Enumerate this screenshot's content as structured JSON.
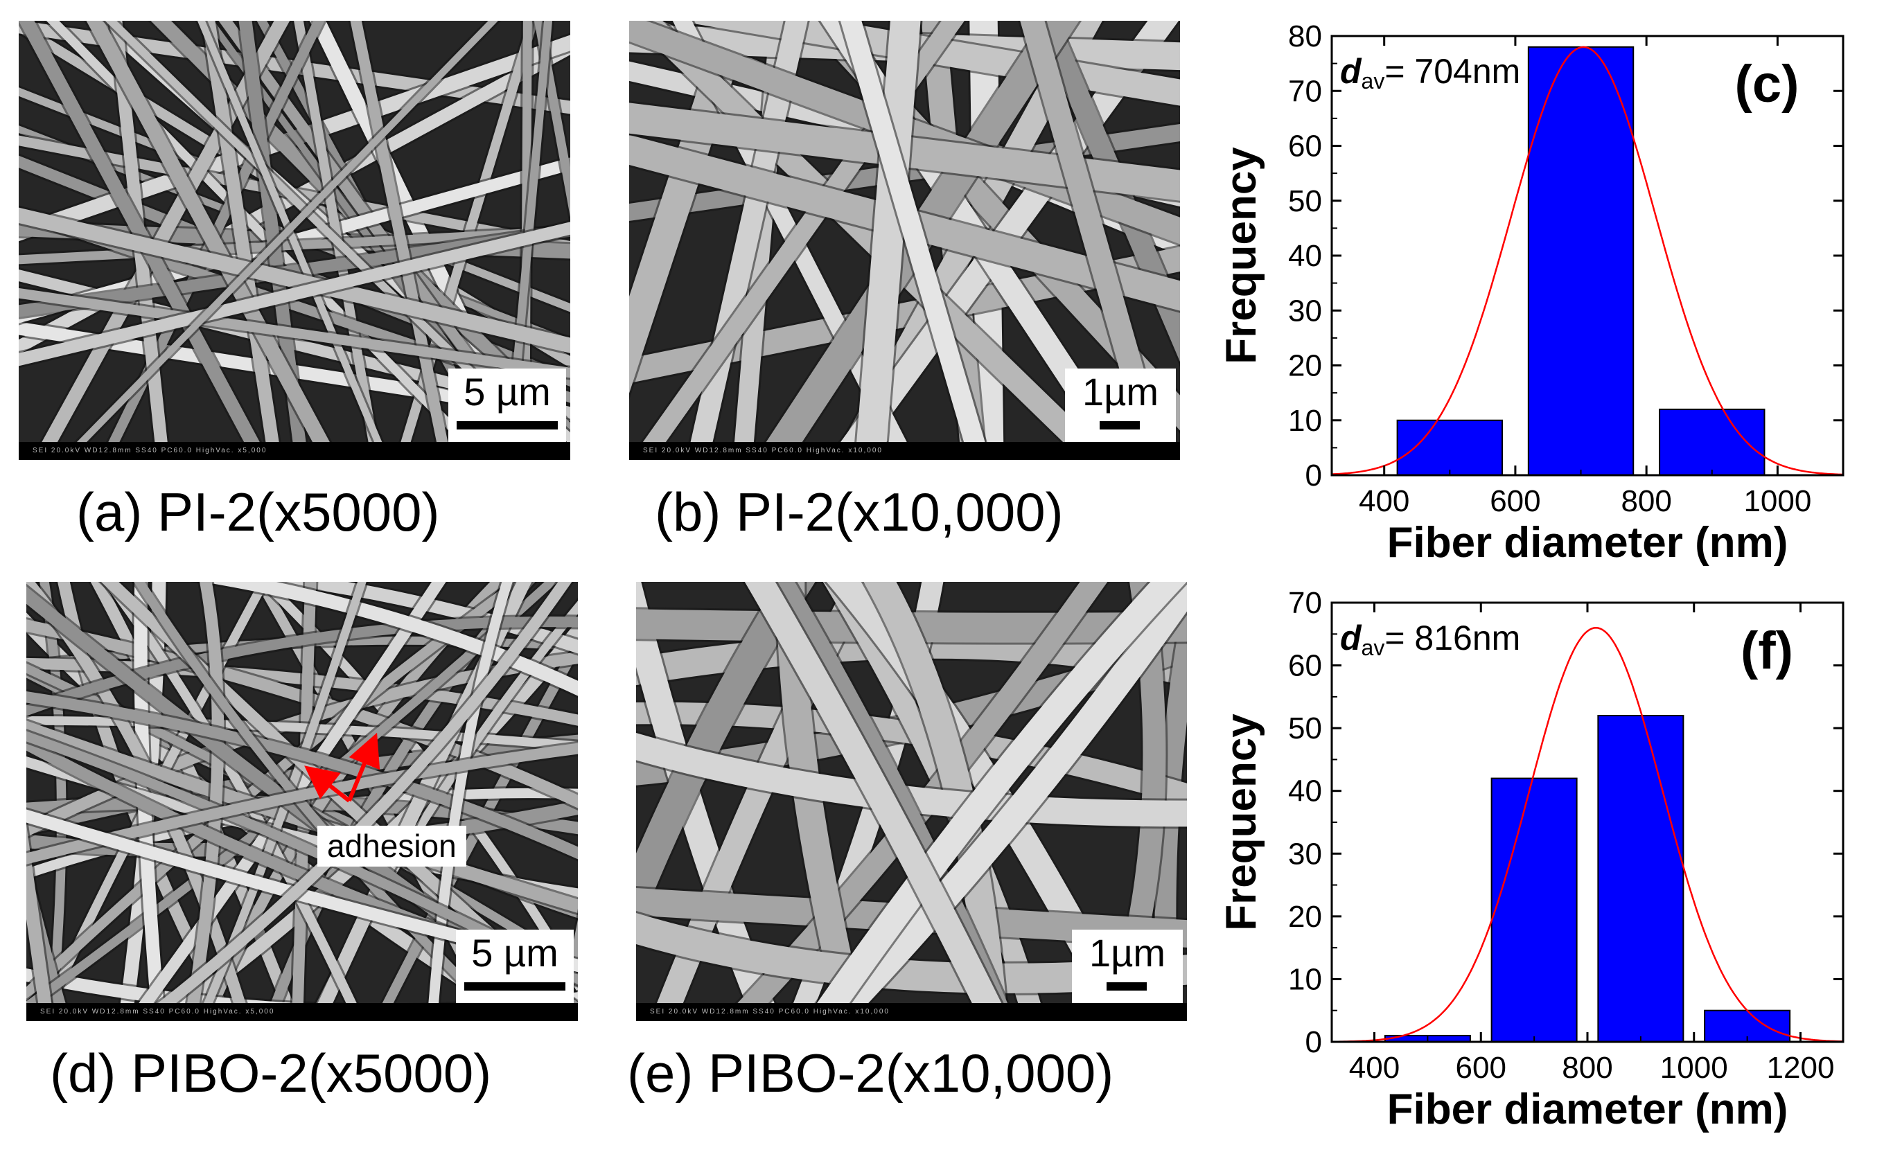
{
  "panels": {
    "a": {
      "caption": "(a) PI-2(x5000)",
      "scale": "5 µm",
      "strip": "SEI   20.0kV   WD12.8mm   SS40   PC60.0   HighVac.   x5,000"
    },
    "b": {
      "caption": "(b) PI-2(x10,000)",
      "scale": "1µm",
      "strip": "SEI   20.0kV   WD12.8mm   SS40   PC60.0   HighVac.   x10,000"
    },
    "d": {
      "caption": "(d) PIBO-2(x5000)",
      "scale": "5 µm",
      "annotation": "adhesion",
      "strip": "SEI   20.0kV   WD12.8mm   SS40   PC60.0   HighVac.   x5,000"
    },
    "e": {
      "caption": "(e) PIBO-2(x10,000)",
      "scale": "1µm",
      "strip": "SEI   20.0kV   WD12.8mm   SS40   PC60.0   HighVac.   x10,000"
    }
  },
  "colors": {
    "bar": "#0000ff",
    "curve": "#ff0000",
    "arrow": "#ff0000"
  },
  "chart_data": [
    {
      "type": "bar",
      "panel": "(c)",
      "xlabel": "Fiber diameter (nm)",
      "ylabel": "Frequency",
      "annotation_main": "d",
      "annotation_sub": "av",
      "annotation_value": "= 704nm",
      "xlim": [
        320,
        1100
      ],
      "ylim": [
        0,
        80
      ],
      "xticks": [
        400,
        600,
        800,
        1000
      ],
      "yticks": [
        0,
        10,
        20,
        30,
        40,
        50,
        60,
        70,
        80
      ],
      "bars": [
        {
          "center": 500,
          "width": 160,
          "value": 10
        },
        {
          "center": 700,
          "width": 160,
          "value": 78
        },
        {
          "center": 900,
          "width": 160,
          "value": 12
        }
      ],
      "fit": {
        "type": "gaussian",
        "mean": 704,
        "sigma": 110,
        "peak": 78
      }
    },
    {
      "type": "bar",
      "panel": "(f)",
      "xlabel": "Fiber diameter (nm)",
      "ylabel": "Frequency",
      "annotation_main": "d",
      "annotation_sub": "av",
      "annotation_value": "= 816nm",
      "xlim": [
        320,
        1280
      ],
      "ylim": [
        0,
        70
      ],
      "xticks": [
        400,
        600,
        800,
        1000,
        1200
      ],
      "yticks": [
        0,
        10,
        20,
        30,
        40,
        50,
        60,
        70
      ],
      "bars": [
        {
          "center": 500,
          "width": 160,
          "value": 1
        },
        {
          "center": 700,
          "width": 160,
          "value": 42
        },
        {
          "center": 900,
          "width": 160,
          "value": 52
        },
        {
          "center": 1100,
          "width": 160,
          "value": 5
        }
      ],
      "fit": {
        "type": "gaussian",
        "mean": 816,
        "sigma": 125,
        "peak": 66
      }
    }
  ]
}
